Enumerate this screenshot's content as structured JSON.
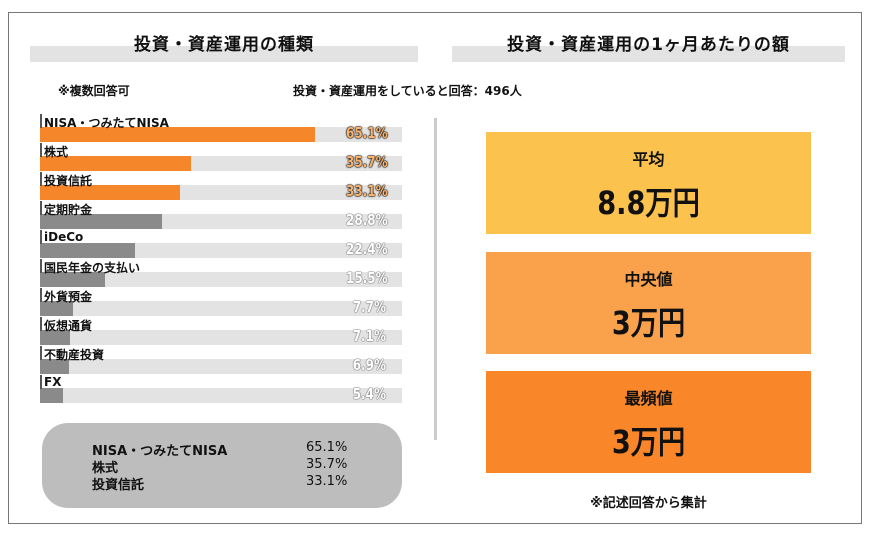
{
  "left": {
    "title": "投資・資産運用の種類",
    "note": "※複数回答可",
    "respondents": "投資・資産運用をしていると回答：496人"
  },
  "right": {
    "title": "投資・資産運用の1ヶ月あたりの額",
    "cards": [
      {
        "label": "平均",
        "value": "8.8万円",
        "color": "#fbc24e"
      },
      {
        "label": "中央値",
        "value": "3万円",
        "color": "#f9a24b"
      },
      {
        "label": "最頻値",
        "value": "3万円",
        "color": "#f98628"
      }
    ],
    "footnote": "※記述回答から集計"
  },
  "chart_data": {
    "type": "bar",
    "orientation": "horizontal",
    "categories": [
      "NISA・つみたてNISA",
      "株式",
      "投資信託",
      "定期貯金",
      "iDeCo",
      "国民年金の支払い",
      "外貨預金",
      "仮想通貨",
      "不動産投資",
      "FX"
    ],
    "values": [
      65.1,
      35.7,
      33.1,
      28.8,
      22.4,
      15.5,
      7.7,
      7.1,
      6.9,
      5.4
    ],
    "labels": [
      "65.1%",
      "35.7%",
      "33.1%",
      "28.8%",
      "22.4%",
      "15.5%",
      "7.7%",
      "7.1%",
      "6.9%",
      "5.4%"
    ],
    "highlight_top": 3,
    "colors": {
      "highlight": "#f5862a",
      "other": "#8a8a8a",
      "track": "#e3e3e3"
    }
  },
  "summary": [
    {
      "label": "NISA・つみたてNISA",
      "value": "65.1%"
    },
    {
      "label": "株式",
      "value": "35.7%"
    },
    {
      "label": "投資信託",
      "value": "33.1%"
    }
  ]
}
